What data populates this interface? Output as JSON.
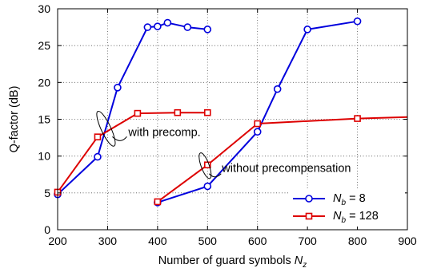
{
  "chart_data": {
    "type": "line",
    "xlabel_text": "Number of guard symbols ",
    "xlabel_var": "N",
    "xlabel_sub": "z",
    "ylabel": "Q-factor (dB)",
    "xlim": [
      200,
      900
    ],
    "ylim": [
      0,
      30
    ],
    "xticks": [
      200,
      300,
      400,
      500,
      600,
      700,
      800,
      900
    ],
    "yticks": [
      0,
      5,
      10,
      15,
      20,
      25,
      30
    ],
    "grid": true,
    "legend_position": "bottom-right",
    "series": [
      {
        "id": "nb8",
        "legend_var": "N",
        "legend_sub": "b",
        "legend_rest": " = 8",
        "color": "#0000dd",
        "marker": "circle",
        "segments": [
          {
            "x": [
              200,
              280,
              320,
              380,
              400,
              420,
              460,
              500
            ],
            "y": [
              4.8,
              9.9,
              19.3,
              27.5,
              27.6,
              28.1,
              27.5,
              27.2
            ]
          },
          {
            "x": [
              400,
              500,
              600,
              640,
              700,
              800
            ],
            "y": [
              3.7,
              5.9,
              13.3,
              19.1,
              27.2,
              28.3
            ]
          }
        ]
      },
      {
        "id": "nb128",
        "legend_var": "N",
        "legend_sub": "b",
        "legend_rest": " = 128",
        "color": "#dd0000",
        "marker": "square",
        "segments": [
          {
            "x": [
              200,
              280,
              360,
              440,
              500
            ],
            "y": [
              5.1,
              12.6,
              15.8,
              15.9,
              15.9
            ]
          },
          {
            "x": [
              400,
              500,
              600,
              800,
              900
            ],
            "y": [
              3.8,
              8.8,
              14.4,
              15.1,
              15.3
            ],
            "markers": [
              true,
              true,
              true,
              true,
              false
            ]
          }
        ]
      }
    ],
    "annotations": [
      {
        "id": "with-precomp",
        "text": "with precomp.",
        "x": 300,
        "y": 13.5
      },
      {
        "id": "without-precomp",
        "text": "without precompensation",
        "x": 542,
        "y": 7.5
      }
    ]
  }
}
